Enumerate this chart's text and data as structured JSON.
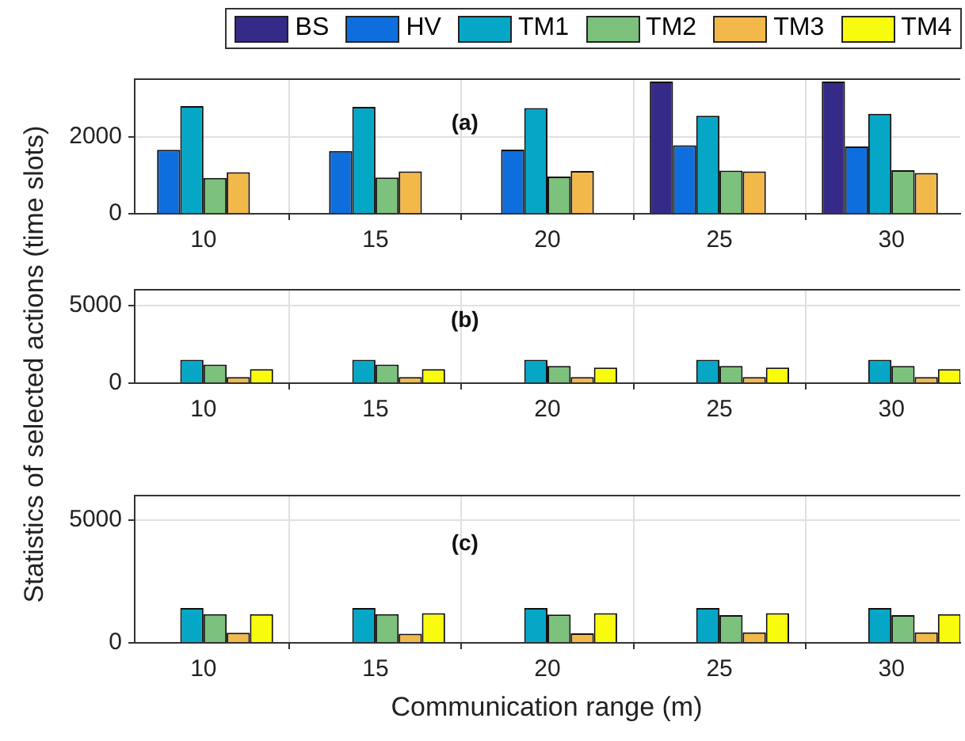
{
  "chart_data": [
    {
      "type": "bar",
      "x": [
        10,
        15,
        20,
        25,
        30
      ],
      "xlim": [
        8,
        32
      ],
      "xticks": [
        10,
        15,
        20,
        25,
        30
      ],
      "ylim": [
        0,
        3500
      ],
      "yticks": [
        0,
        2000
      ],
      "grid": true,
      "legend": "top",
      "ylabel": "Statistics of selected actions (time slots)",
      "annotations": [
        "(a)"
      ],
      "series": [
        {
          "name": "BS",
          "color": "#352a87",
          "values": [
            null,
            null,
            null,
            3440,
            3440
          ]
        },
        {
          "name": "HV",
          "color": "#0f6ede",
          "values": [
            1660,
            1630,
            1670,
            1780,
            1750
          ]
        },
        {
          "name": "TM1",
          "color": "#06a7c6",
          "values": [
            2800,
            2780,
            2750,
            2550,
            2600
          ]
        },
        {
          "name": "TM2",
          "color": "#7cc17c",
          "values": [
            930,
            940,
            970,
            1120,
            1130
          ]
        },
        {
          "name": "TM3",
          "color": "#f2b84a",
          "values": [
            1080,
            1100,
            1110,
            1100,
            1060
          ]
        },
        {
          "name": "TM4",
          "color": "#f9fb0e",
          "values": [
            0,
            0,
            0,
            0,
            0
          ]
        }
      ]
    },
    {
      "type": "bar",
      "x": [
        10,
        15,
        20,
        25,
        30
      ],
      "xlim": [
        8,
        32
      ],
      "xticks": [
        10,
        15,
        20,
        25,
        30
      ],
      "ylim": [
        0,
        6000
      ],
      "yticks": [
        0,
        5000
      ],
      "grid": true,
      "annotations": [
        "(b)"
      ],
      "series": [
        {
          "color": "#352a87",
          "values": [
            null,
            null,
            null,
            null,
            null
          ]
        },
        {
          "color": "#0f6ede",
          "values": [
            0,
            0,
            0,
            0,
            0
          ]
        },
        {
          "color": "#06a7c6",
          "values": [
            1500,
            1500,
            1500,
            1500,
            1500
          ]
        },
        {
          "color": "#7cc17c",
          "values": [
            1200,
            1200,
            1100,
            1100,
            1100
          ]
        },
        {
          "color": "#f2b84a",
          "values": [
            400,
            400,
            400,
            400,
            400
          ]
        },
        {
          "color": "#f9fb0e",
          "values": [
            900,
            900,
            1000,
            1000,
            900
          ]
        }
      ]
    },
    {
      "type": "bar",
      "x": [
        10,
        15,
        20,
        25,
        30
      ],
      "xlim": [
        8,
        32
      ],
      "xticks": [
        10,
        15,
        20,
        25,
        30
      ],
      "ylim": [
        0,
        6000
      ],
      "yticks": [
        0,
        5000
      ],
      "grid": true,
      "xlabel": "Communication range (m)",
      "annotations": [
        "(c)"
      ],
      "series": [
        {
          "color": "#352a87",
          "values": [
            0,
            0,
            0,
            0,
            0
          ]
        },
        {
          "color": "#0f6ede",
          "values": [
            null,
            null,
            null,
            null,
            null
          ]
        },
        {
          "color": "#06a7c6",
          "values": [
            1420,
            1420,
            1420,
            1420,
            1420
          ]
        },
        {
          "color": "#7cc17c",
          "values": [
            1170,
            1170,
            1150,
            1130,
            1130
          ]
        },
        {
          "color": "#f2b84a",
          "values": [
            410,
            370,
            390,
            430,
            430
          ]
        },
        {
          "color": "#f9fb0e",
          "values": [
            1170,
            1210,
            1210,
            1210,
            1170
          ]
        }
      ]
    }
  ]
}
